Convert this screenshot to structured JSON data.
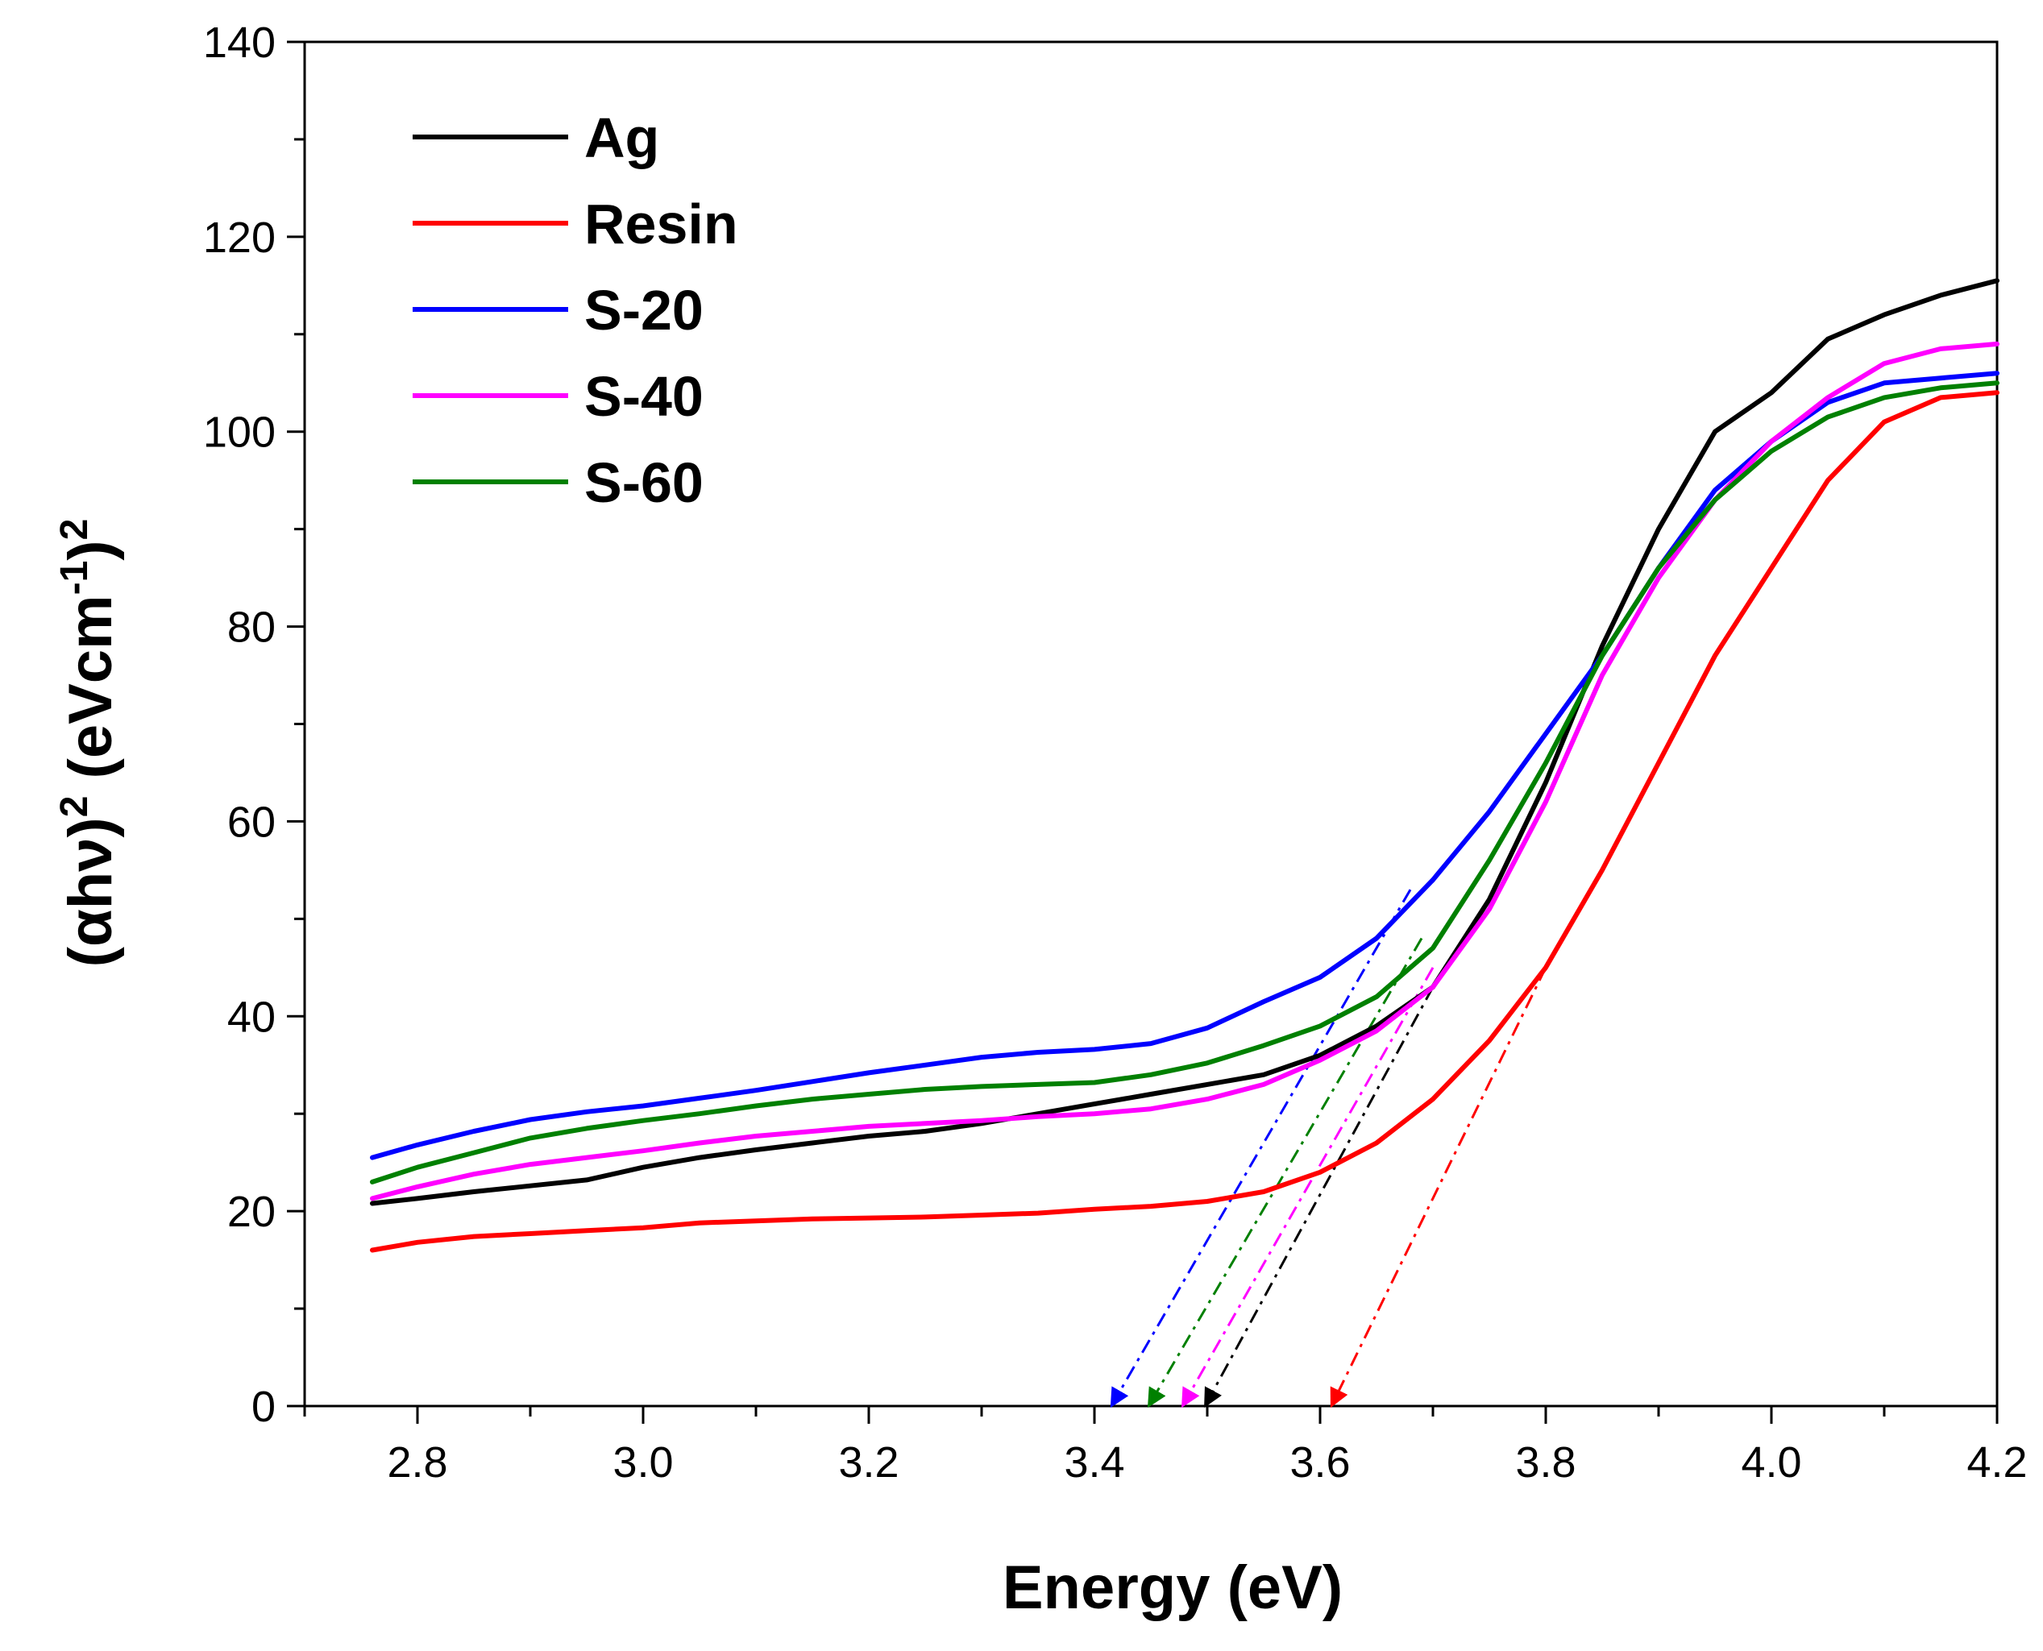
{
  "chart_data": {
    "type": "line",
    "xlabel": "Energy (eV)",
    "ylabel_parts": {
      "main": "(αhν)",
      "sup1": "2",
      "unit_open": " (eVcm",
      "sup2": "-1",
      "unit_close": ")",
      "sup3": "2"
    },
    "xlim": [
      2.7,
      4.2
    ],
    "ylim": [
      0,
      140
    ],
    "x_ticks": [
      "2.8",
      "3.0",
      "3.2",
      "3.4",
      "3.6",
      "3.8",
      "4.0",
      "4.2"
    ],
    "y_ticks": [
      "0",
      "20",
      "40",
      "60",
      "80",
      "100",
      "120",
      "140"
    ],
    "grid": false,
    "legend_position": "top-left",
    "series": [
      {
        "name": "Ag",
        "color": "#000000",
        "x": [
          2.76,
          2.8,
          2.85,
          2.9,
          2.95,
          3.0,
          3.05,
          3.1,
          3.15,
          3.2,
          3.25,
          3.3,
          3.35,
          3.4,
          3.45,
          3.5,
          3.55,
          3.6,
          3.65,
          3.7,
          3.75,
          3.8,
          3.85,
          3.9,
          3.95,
          4.0,
          4.05,
          4.1,
          4.15,
          4.2
        ],
        "y": [
          20.8,
          21.3,
          22.0,
          22.6,
          23.2,
          24.5,
          25.5,
          26.3,
          27.0,
          27.7,
          28.2,
          29.0,
          30.0,
          31.0,
          32.0,
          33.0,
          34.0,
          36.0,
          39.0,
          43.0,
          52.0,
          64.0,
          78.0,
          90.0,
          100.0,
          104.0,
          109.5,
          112.0,
          114.0,
          115.5
        ]
      },
      {
        "name": "Resin",
        "color": "#ff0000",
        "x": [
          2.76,
          2.8,
          2.85,
          2.9,
          2.95,
          3.0,
          3.05,
          3.1,
          3.15,
          3.2,
          3.25,
          3.3,
          3.35,
          3.4,
          3.45,
          3.5,
          3.55,
          3.6,
          3.65,
          3.7,
          3.75,
          3.8,
          3.85,
          3.9,
          3.95,
          4.0,
          4.05,
          4.1,
          4.15,
          4.2
        ],
        "y": [
          16.0,
          16.8,
          17.4,
          17.7,
          18.0,
          18.3,
          18.8,
          19.0,
          19.2,
          19.3,
          19.4,
          19.6,
          19.8,
          20.2,
          20.5,
          21.0,
          22.0,
          24.0,
          27.0,
          31.5,
          37.5,
          45.0,
          55.0,
          66.0,
          77.0,
          86.0,
          95.0,
          101.0,
          103.5,
          104.0
        ]
      },
      {
        "name": "S-20",
        "color": "#0000ff",
        "x": [
          2.76,
          2.8,
          2.85,
          2.9,
          2.95,
          3.0,
          3.05,
          3.1,
          3.15,
          3.2,
          3.25,
          3.3,
          3.35,
          3.4,
          3.45,
          3.5,
          3.55,
          3.6,
          3.65,
          3.7,
          3.75,
          3.8,
          3.85,
          3.9,
          3.95,
          4.0,
          4.05,
          4.1,
          4.15,
          4.2
        ],
        "y": [
          25.5,
          26.8,
          28.2,
          29.4,
          30.2,
          30.8,
          31.6,
          32.4,
          33.3,
          34.2,
          35.0,
          35.8,
          36.3,
          36.6,
          37.2,
          38.8,
          41.5,
          44.0,
          48.0,
          54.0,
          61.0,
          69.0,
          77.0,
          86.0,
          94.0,
          99.0,
          103.0,
          105.0,
          105.5,
          106.0
        ]
      },
      {
        "name": "S-40",
        "color": "#ff00ff",
        "x": [
          2.76,
          2.8,
          2.85,
          2.9,
          2.95,
          3.0,
          3.05,
          3.1,
          3.15,
          3.2,
          3.25,
          3.3,
          3.35,
          3.4,
          3.45,
          3.5,
          3.55,
          3.6,
          3.65,
          3.7,
          3.75,
          3.8,
          3.85,
          3.9,
          3.95,
          4.0,
          4.05,
          4.1,
          4.15,
          4.2
        ],
        "y": [
          21.3,
          22.5,
          23.8,
          24.8,
          25.5,
          26.2,
          27.0,
          27.7,
          28.2,
          28.7,
          29.0,
          29.3,
          29.7,
          30.0,
          30.5,
          31.5,
          33.0,
          35.5,
          38.5,
          43.0,
          51.0,
          62.0,
          75.0,
          85.0,
          93.0,
          99.0,
          103.5,
          107.0,
          108.5,
          109.0
        ]
      },
      {
        "name": "S-60",
        "color": "#008000",
        "x": [
          2.76,
          2.8,
          2.85,
          2.9,
          2.95,
          3.0,
          3.05,
          3.1,
          3.15,
          3.2,
          3.25,
          3.3,
          3.35,
          3.4,
          3.45,
          3.5,
          3.55,
          3.6,
          3.65,
          3.7,
          3.75,
          3.8,
          3.85,
          3.9,
          3.95,
          4.0,
          4.05,
          4.1,
          4.15,
          4.2
        ],
        "y": [
          23.0,
          24.5,
          26.0,
          27.5,
          28.5,
          29.3,
          30.0,
          30.8,
          31.5,
          32.0,
          32.5,
          32.8,
          33.0,
          33.2,
          34.0,
          35.2,
          37.0,
          39.0,
          42.0,
          47.0,
          56.0,
          66.0,
          77.0,
          86.0,
          93.0,
          98.0,
          101.5,
          103.5,
          104.5,
          105.0
        ]
      }
    ],
    "tangent_lines": [
      {
        "series": "S-20",
        "color": "#0000ff",
        "from": [
          3.68,
          53.0
        ],
        "to": [
          3.415,
          0
        ]
      },
      {
        "series": "S-60",
        "color": "#008000",
        "from": [
          3.69,
          48.0
        ],
        "to": [
          3.448,
          0
        ]
      },
      {
        "series": "S-40",
        "color": "#ff00ff",
        "from": [
          3.7,
          45.0
        ],
        "to": [
          3.478,
          0
        ]
      },
      {
        "series": "Ag",
        "color": "#000000",
        "from": [
          3.7,
          43.0
        ],
        "to": [
          3.498,
          0
        ]
      },
      {
        "series": "Resin",
        "color": "#ff0000",
        "from": [
          3.8,
          45.0
        ],
        "to": [
          3.61,
          0
        ]
      }
    ]
  }
}
